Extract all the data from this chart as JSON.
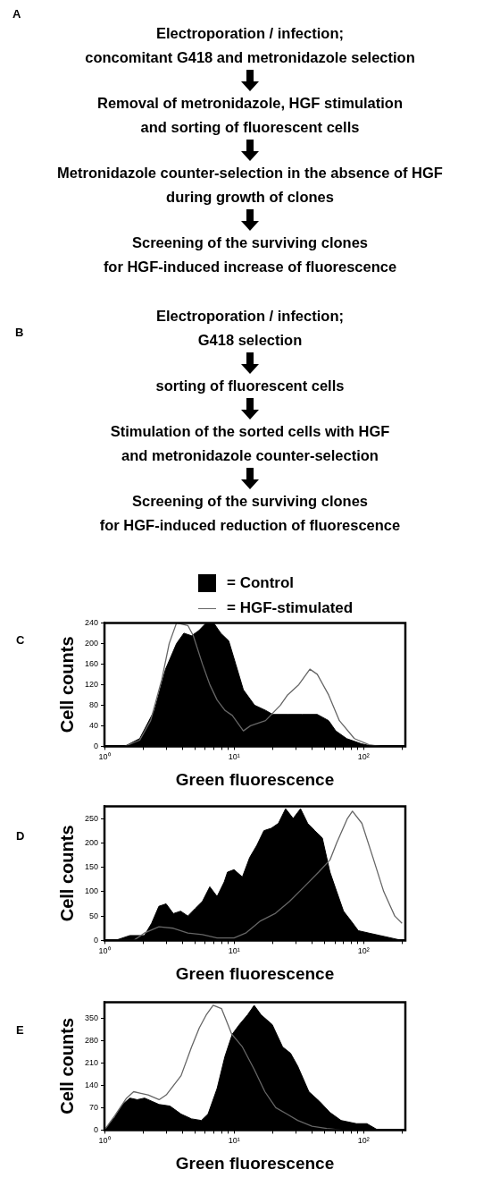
{
  "chart_data": [
    {
      "type": "other",
      "annotations": [
        "A",
        "Electroporation / infection;\nconcomitant G418 and metronidazole selection",
        "Removal of metronidazole, HGF stimulation\nand sorting of fluorescent cells",
        "Metronidazole counter-selection in the absence of HGF\nduring growth of clones",
        "Screening of the surviving clones\nfor HGF-induced increase of fluorescence"
      ]
    },
    {
      "type": "other",
      "annotations": [
        "B",
        "Electroporation / infection;\nG418 selection",
        "sorting of fluorescent cells",
        "Stimulation of the sorted cells with HGF\nand metronidazole counter-selection",
        "Screening of the surviving clones\nfor HGF-induced reduction of fluorescence"
      ]
    },
    {
      "type": "area",
      "annotations": [
        "C"
      ],
      "xlabel": "Green fluorescence",
      "ylabel": "Cell counts",
      "log": "x",
      "legend": "top",
      "marker": "none",
      "xlim": [
        1,
        210
      ],
      "ylim": [
        0,
        240
      ],
      "xticks": [
        {
          "value": 1,
          "label": "10⁰"
        },
        {
          "value": 2,
          "label": null
        },
        {
          "value": 3,
          "label": null
        },
        {
          "value": 4,
          "label": null
        },
        {
          "value": 5,
          "label": null
        },
        {
          "value": 6,
          "label": null
        },
        {
          "value": 7,
          "label": null
        },
        {
          "value": 8,
          "label": null
        },
        {
          "value": 9,
          "label": null
        },
        {
          "value": 10,
          "label": "10¹"
        },
        {
          "value": 20,
          "label": null
        },
        {
          "value": 30,
          "label": null
        },
        {
          "value": 40,
          "label": null
        },
        {
          "value": 50,
          "label": null
        },
        {
          "value": 60,
          "label": null
        },
        {
          "value": 70,
          "label": null
        },
        {
          "value": 80,
          "label": null
        },
        {
          "value": 90,
          "label": null
        },
        {
          "value": 100,
          "label": "10²"
        },
        {
          "value": 200,
          "label": null
        }
      ],
      "yticks": [
        0,
        40,
        80,
        120,
        160,
        200,
        240
      ],
      "series": [
        {
          "name": "= Control",
          "color": "#000000",
          "type": "area",
          "x": [
            1.43,
            1.87,
            2.43,
            2.96,
            3.6,
            4.1,
            4.7,
            5.35,
            6.1,
            6.96,
            7.9,
            9.1,
            10.3,
            11.8,
            14.4,
            17.5,
            19.9,
            25.9,
            33.7,
            43.9,
            53.7,
            61,
            74,
            96,
            118
          ],
          "values": [
            0,
            15,
            70,
            150,
            200,
            220,
            215,
            225,
            240,
            240,
            220,
            205,
            160,
            110,
            80,
            70,
            62,
            62,
            62,
            62,
            50,
            30,
            15,
            5,
            0
          ]
        },
        {
          "name": "= HGF-stimulated",
          "color": "#666666",
          "type": "line",
          "x": [
            1.43,
            1.87,
            2.27,
            2.77,
            3.16,
            3.6,
            4.4,
            4.85,
            5.7,
            6.5,
            7.4,
            8.5,
            9.7,
            11.8,
            13.4,
            17.5,
            22.8,
            25.9,
            31.6,
            38.5,
            43.9,
            53.7,
            65,
            84.9,
            110,
            134
          ],
          "values": [
            0,
            12,
            50,
            130,
            200,
            240,
            235,
            215,
            160,
            120,
            90,
            70,
            60,
            30,
            40,
            50,
            80,
            100,
            120,
            150,
            140,
            100,
            50,
            15,
            3,
            0
          ]
        }
      ]
    },
    {
      "type": "area",
      "annotations": [
        "D"
      ],
      "xlabel": "Green fluorescence",
      "ylabel": "Cell counts",
      "log": "x",
      "marker": "none",
      "xlim": [
        1,
        210
      ],
      "ylim": [
        0,
        275
      ],
      "xticks": [
        {
          "value": 1,
          "label": "10⁰"
        },
        {
          "value": 2,
          "label": null
        },
        {
          "value": 3,
          "label": null
        },
        {
          "value": 4,
          "label": null
        },
        {
          "value": 5,
          "label": null
        },
        {
          "value": 6,
          "label": null
        },
        {
          "value": 7,
          "label": null
        },
        {
          "value": 8,
          "label": null
        },
        {
          "value": 9,
          "label": null
        },
        {
          "value": 10,
          "label": "10¹"
        },
        {
          "value": 20,
          "label": null
        },
        {
          "value": 30,
          "label": null
        },
        {
          "value": 40,
          "label": null
        },
        {
          "value": 50,
          "label": null
        },
        {
          "value": 60,
          "label": null
        },
        {
          "value": 70,
          "label": null
        },
        {
          "value": 80,
          "label": null
        },
        {
          "value": 90,
          "label": null
        },
        {
          "value": 100,
          "label": "10²"
        },
        {
          "value": 200,
          "label": null
        }
      ],
      "yticks": [
        0,
        50,
        100,
        150,
        200,
        250
      ],
      "series": [
        {
          "color": "#000000",
          "type": "area",
          "x": [
            1.21,
            1.57,
            2.03,
            2.31,
            2.63,
            2.99,
            3.4,
            3.87,
            4.4,
            5.0,
            5.7,
            6.5,
            7.4,
            8.4,
            8.9,
            10,
            11.6,
            13.2,
            15,
            17,
            19.4,
            22,
            25,
            28.6,
            32.6,
            37,
            42,
            48,
            55,
            62,
            70,
            80,
            91,
            110,
            134,
            163,
            198
          ],
          "values": [
            0,
            10,
            10,
            35,
            70,
            75,
            55,
            60,
            50,
            65,
            80,
            110,
            90,
            120,
            140,
            145,
            130,
            170,
            195,
            225,
            230,
            240,
            270,
            250,
            270,
            240,
            225,
            210,
            140,
            100,
            60,
            40,
            20,
            15,
            10,
            5,
            0
          ]
        },
        {
          "color": "#666666",
          "type": "line",
          "x": [
            1.07,
            1.68,
            2.03,
            2.63,
            3.4,
            4.4,
            5.7,
            7.4,
            10,
            12.3,
            16,
            20.7,
            26.8,
            34.8,
            45,
            55,
            62,
            75,
            82,
            97,
            118,
            143,
            174,
            198
          ],
          "values": [
            0,
            0,
            15,
            28,
            25,
            15,
            12,
            5,
            5,
            15,
            40,
            55,
            80,
            110,
            140,
            165,
            200,
            250,
            265,
            240,
            170,
            100,
            50,
            35
          ]
        }
      ]
    },
    {
      "type": "area",
      "annotations": [
        "E"
      ],
      "xlabel": "Green fluorescence",
      "ylabel": "Cell counts",
      "log": "x",
      "marker": "none",
      "xlim": [
        1,
        210
      ],
      "ylim": [
        0,
        400
      ],
      "xticks": [
        {
          "value": 1,
          "label": "10⁰"
        },
        {
          "value": 2,
          "label": null
        },
        {
          "value": 3,
          "label": null
        },
        {
          "value": 4,
          "label": null
        },
        {
          "value": 5,
          "label": null
        },
        {
          "value": 6,
          "label": null
        },
        {
          "value": 7,
          "label": null
        },
        {
          "value": 8,
          "label": null
        },
        {
          "value": 9,
          "label": null
        },
        {
          "value": 10,
          "label": "10¹"
        },
        {
          "value": 20,
          "label": null
        },
        {
          "value": 30,
          "label": null
        },
        {
          "value": 40,
          "label": null
        },
        {
          "value": 50,
          "label": null
        },
        {
          "value": 60,
          "label": null
        },
        {
          "value": 70,
          "label": null
        },
        {
          "value": 80,
          "label": null
        },
        {
          "value": 90,
          "label": null
        },
        {
          "value": 100,
          "label": "10²"
        },
        {
          "value": 200,
          "label": null
        }
      ],
      "yticks": [
        0,
        70,
        140,
        210,
        280,
        350
      ],
      "series": [
        {
          "color": "#000000",
          "type": "area",
          "x": [
            1,
            1.2,
            1.38,
            1.57,
            1.79,
            2.04,
            2.32,
            2.64,
            3.2,
            3.9,
            4.7,
            5.6,
            6.3,
            7.4,
            8.5,
            9.7,
            11,
            12.7,
            14.3,
            16.2,
            19.7,
            23.7,
            27.3,
            31,
            37.8,
            45.6,
            55,
            67,
            88,
            106,
            129
          ],
          "values": [
            0,
            40,
            80,
            100,
            95,
            100,
            90,
            80,
            75,
            50,
            35,
            30,
            50,
            130,
            230,
            300,
            330,
            360,
            390,
            360,
            330,
            260,
            240,
            200,
            120,
            90,
            55,
            30,
            20,
            20,
            0
          ]
        },
        {
          "color": "#666666",
          "type": "line",
          "x": [
            1,
            1.2,
            1.48,
            1.68,
            1.91,
            2.17,
            2.64,
            3.0,
            3.9,
            4.7,
            5.4,
            6.1,
            6.9,
            8.0,
            9.6,
            11.6,
            14.3,
            17.3,
            21,
            25.6,
            31,
            40,
            52,
            67
          ],
          "values": [
            0,
            45,
            100,
            120,
            115,
            110,
            95,
            110,
            170,
            260,
            320,
            360,
            390,
            380,
            300,
            260,
            190,
            120,
            70,
            50,
            30,
            12,
            5,
            0
          ]
        }
      ]
    }
  ]
}
